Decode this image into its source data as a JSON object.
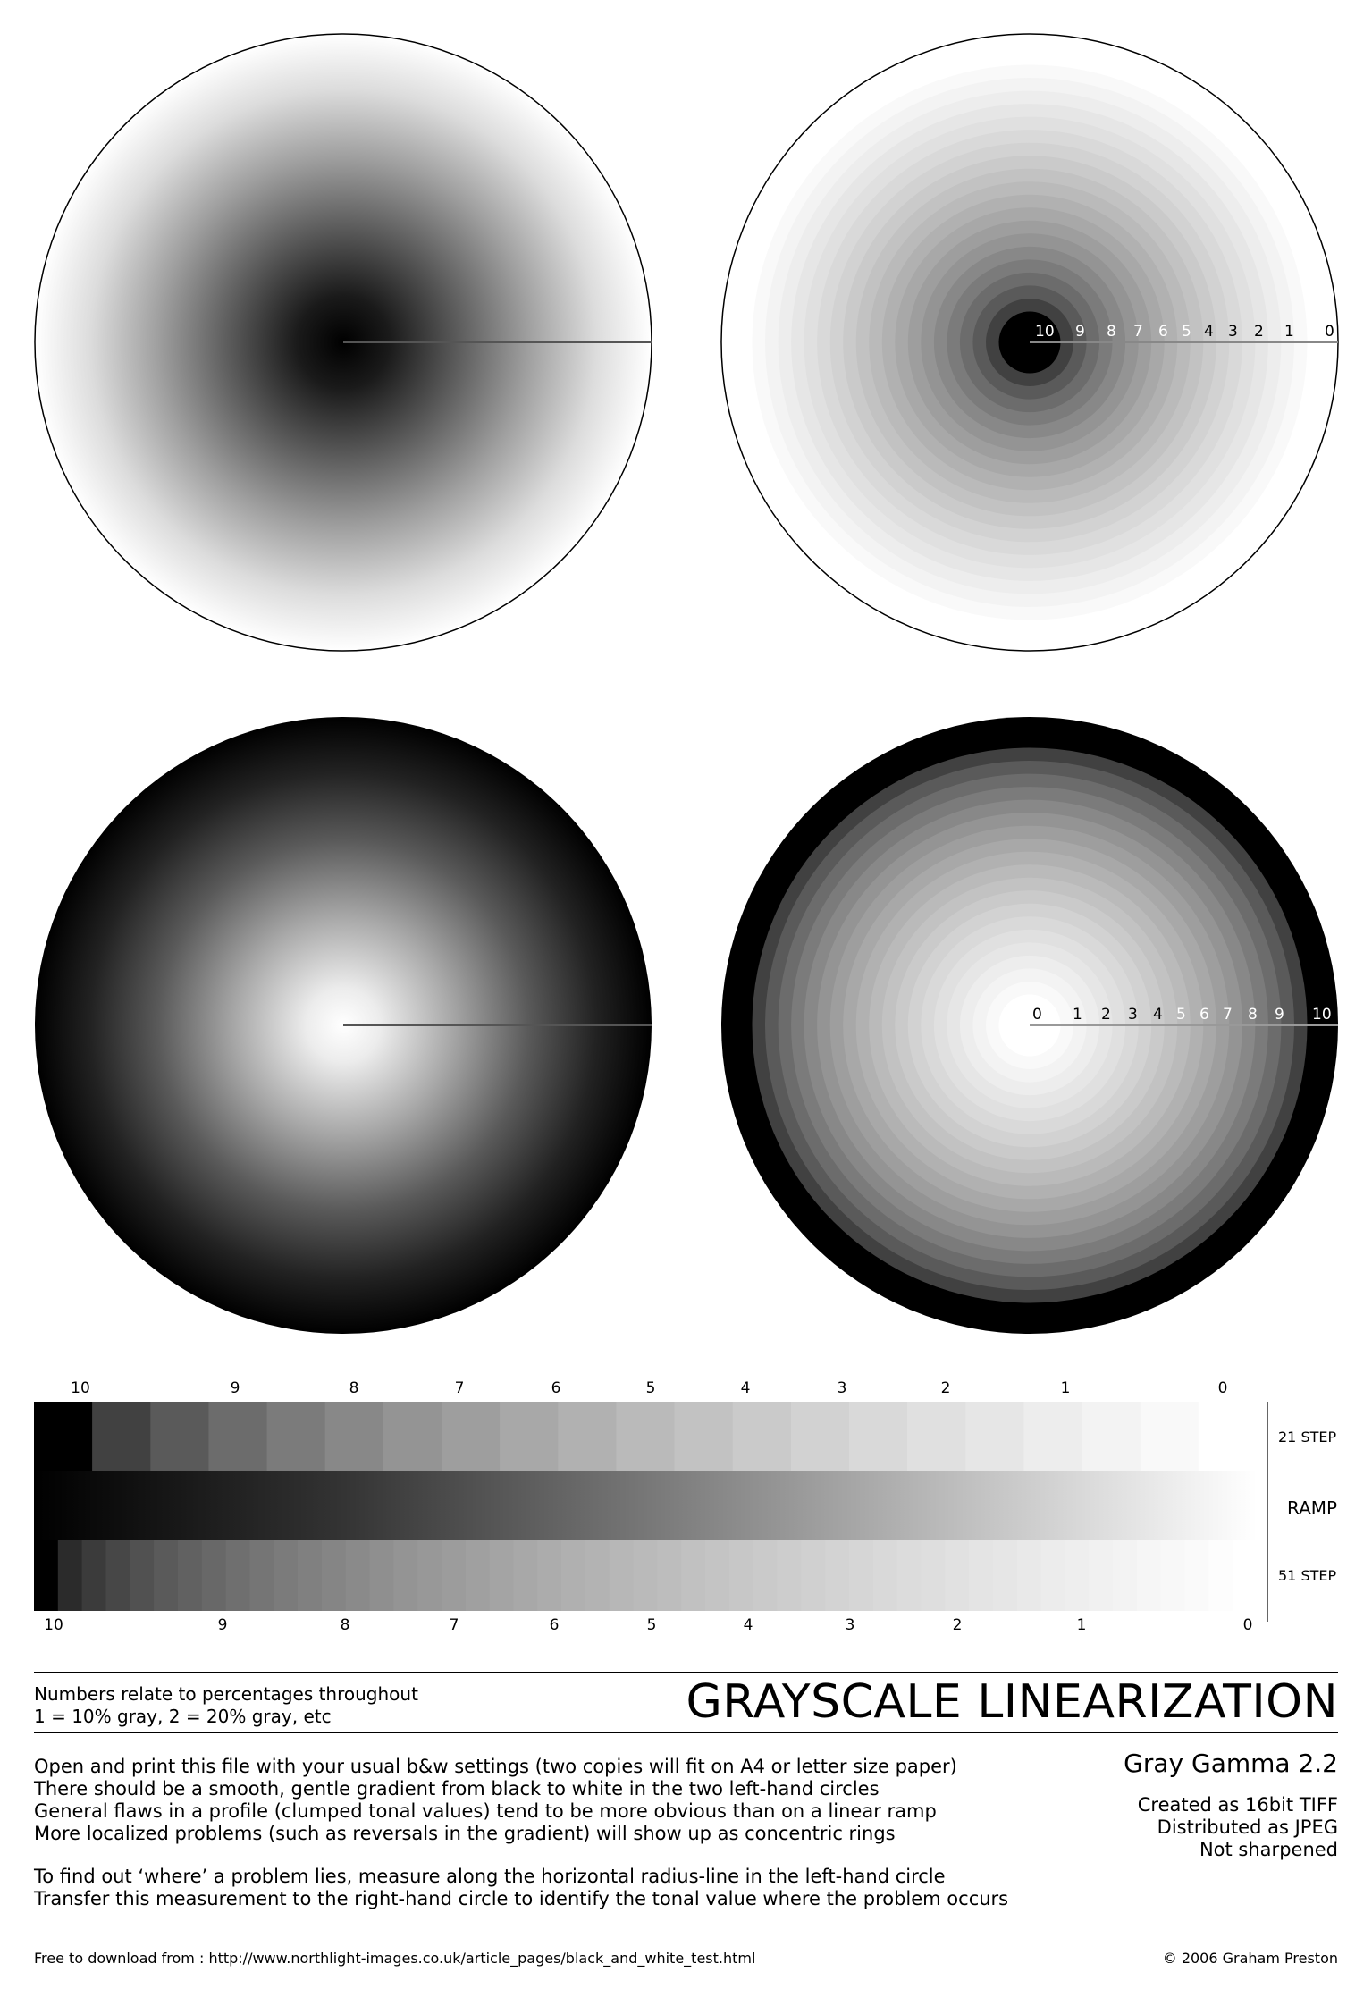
{
  "title": "GRAYSCALE LINEARIZATION",
  "gamma": "Gray Gamma 2.2",
  "percent_note": [
    "Numbers relate to percentages throughout",
    "1 = 10% gray, 2 = 20% gray, etc"
  ],
  "specs": [
    "Created as 16bit TIFF",
    "Distributed as JPEG",
    "Not sharpened"
  ],
  "instructions": [
    "Open and print this file with your usual b&w settings (two copies will fit on A4 or letter size paper)",
    "There should be a smooth, gentle gradient from black to white in the two left-hand circles",
    "General flaws in a profile (clumped tonal values) tend to be more obvious than on a linear ramp",
    "More localized problems (such as reversals in the gradient) will show up as concentric rings"
  ],
  "instructions2": [
    "To find out ‘where’ a problem lies, measure along the horizontal radius-line in the left-hand circle",
    "Transfer this measurement to the right-hand circle to identify the tonal value where the problem occurs"
  ],
  "footer": {
    "download": "Free to download from : http://www.northlight-images.co.uk/article_pages/black_and_white_test.html",
    "copyright": "© 2006 Graham Preston"
  },
  "strip_labels": {
    "step21": "21 STEP",
    "ramp": "RAMP",
    "step51": "51 STEP"
  },
  "chart_data": {
    "type": "other",
    "circle_top_right_labels": [
      "10",
      "9",
      "8",
      "7",
      "6",
      "5",
      "4",
      "3",
      "2",
      "1",
      "0"
    ],
    "circle_bottom_right_labels": [
      "0",
      "1",
      "2",
      "3",
      "4",
      "5",
      "6",
      "7",
      "8",
      "9",
      "10"
    ],
    "strip_top_labels": [
      "10",
      "9",
      "8",
      "7",
      "6",
      "5",
      "4",
      "3",
      "2",
      "1",
      "0"
    ],
    "strip_bottom_labels": [
      "10",
      "9",
      "8",
      "7",
      "6",
      "5",
      "4",
      "3",
      "2",
      "1",
      "0"
    ],
    "step_counts": {
      "top_strip": 21,
      "bottom_strip": 51,
      "circles": 21
    },
    "gamma": 2.2
  }
}
